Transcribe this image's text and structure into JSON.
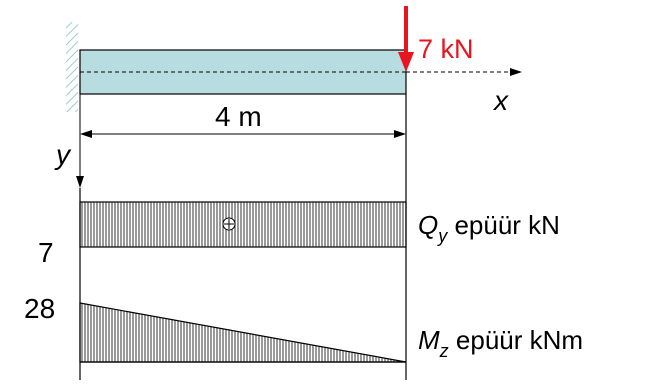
{
  "load": {
    "value_text": "7 kN"
  },
  "axes": {
    "x": "x",
    "y": "y"
  },
  "dimension": {
    "span_text": "4 m"
  },
  "shear_diagram": {
    "sign": "⊕",
    "value_text": "7",
    "title_symbol": "Q",
    "title_sub": "y",
    "title_rest": " epüür  kN"
  },
  "moment_diagram": {
    "value_text": "28",
    "title_symbol": "M",
    "title_sub": "z",
    "title_rest": " epüür  kNm"
  },
  "colors": {
    "beam_fill": "#b8dde0",
    "load_arrow": "#e8141e",
    "line": "#000000",
    "wall_hatch": "#9ecbcc"
  }
}
